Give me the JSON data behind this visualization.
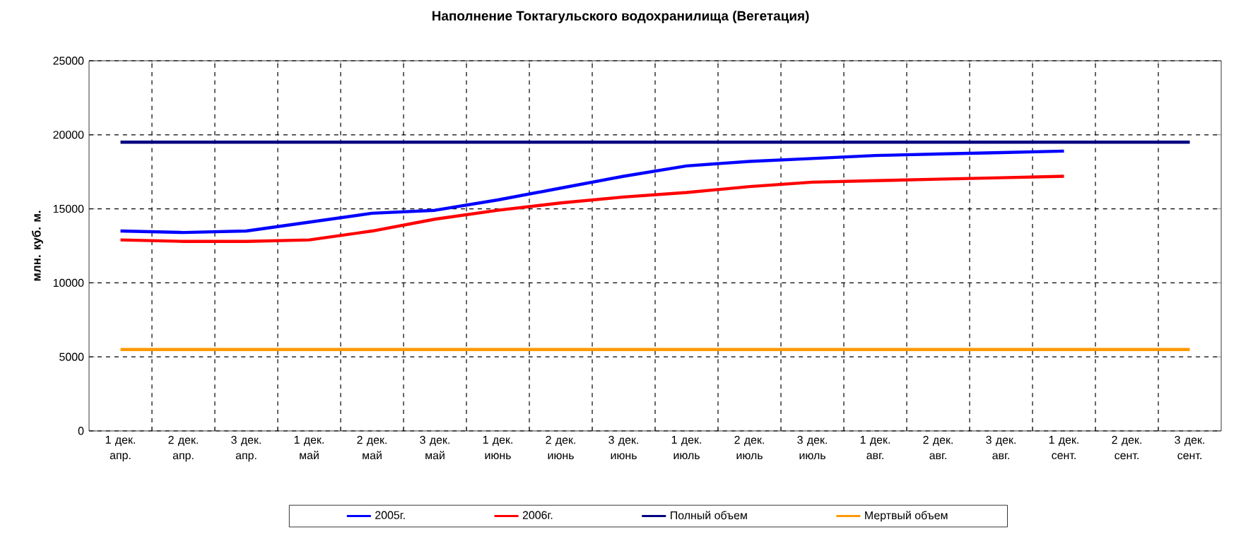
{
  "chart_data": {
    "type": "line",
    "title": "Наполнение Токтагульского водохранилища (Вегетация)",
    "ylabel": "млн. куб. м.",
    "categories": [
      "1 дек. апр.",
      "2 дек. апр.",
      "3 дек. апр.",
      "1 дек. май",
      "2 дек. май",
      "3 дек. май",
      "1 дек. июнь",
      "2 дек. июнь",
      "3 дек. июнь",
      "1 дек. июль",
      "2 дек. июль",
      "3 дек. июль",
      "1 дек. авг.",
      "2 дек. авг.",
      "3 дек. авг.",
      "1 дек. сент.",
      "2 дек. сент.",
      "3 дек. сент."
    ],
    "series": [
      {
        "name": "2005г.",
        "color": "#0000ff",
        "values": [
          13500,
          13400,
          13500,
          14100,
          14700,
          14900,
          15600,
          16400,
          17200,
          17900,
          18200,
          18400,
          18600,
          18700,
          18800,
          18900,
          null,
          null
        ]
      },
      {
        "name": "2006г.",
        "color": "#ff0000",
        "values": [
          12900,
          12800,
          12800,
          12900,
          13500,
          14300,
          14900,
          15400,
          15800,
          16100,
          16500,
          16800,
          16900,
          17000,
          17100,
          17200,
          null,
          null
        ]
      },
      {
        "name": "Полный объем",
        "color": "#000080",
        "values": [
          19500,
          19500,
          19500,
          19500,
          19500,
          19500,
          19500,
          19500,
          19500,
          19500,
          19500,
          19500,
          19500,
          19500,
          19500,
          19500,
          19500,
          19500
        ]
      },
      {
        "name": "Мертвый объем",
        "color": "#ff9900",
        "values": [
          5500,
          5500,
          5500,
          5500,
          5500,
          5500,
          5500,
          5500,
          5500,
          5500,
          5500,
          5500,
          5500,
          5500,
          5500,
          5500,
          5500,
          5500
        ]
      }
    ],
    "ylim": [
      0,
      25000
    ],
    "yticks": [
      0,
      5000,
      10000,
      15000,
      20000,
      25000
    ],
    "grid": true,
    "legend": "bottom",
    "marker": "none",
    "line_style": "solid"
  }
}
